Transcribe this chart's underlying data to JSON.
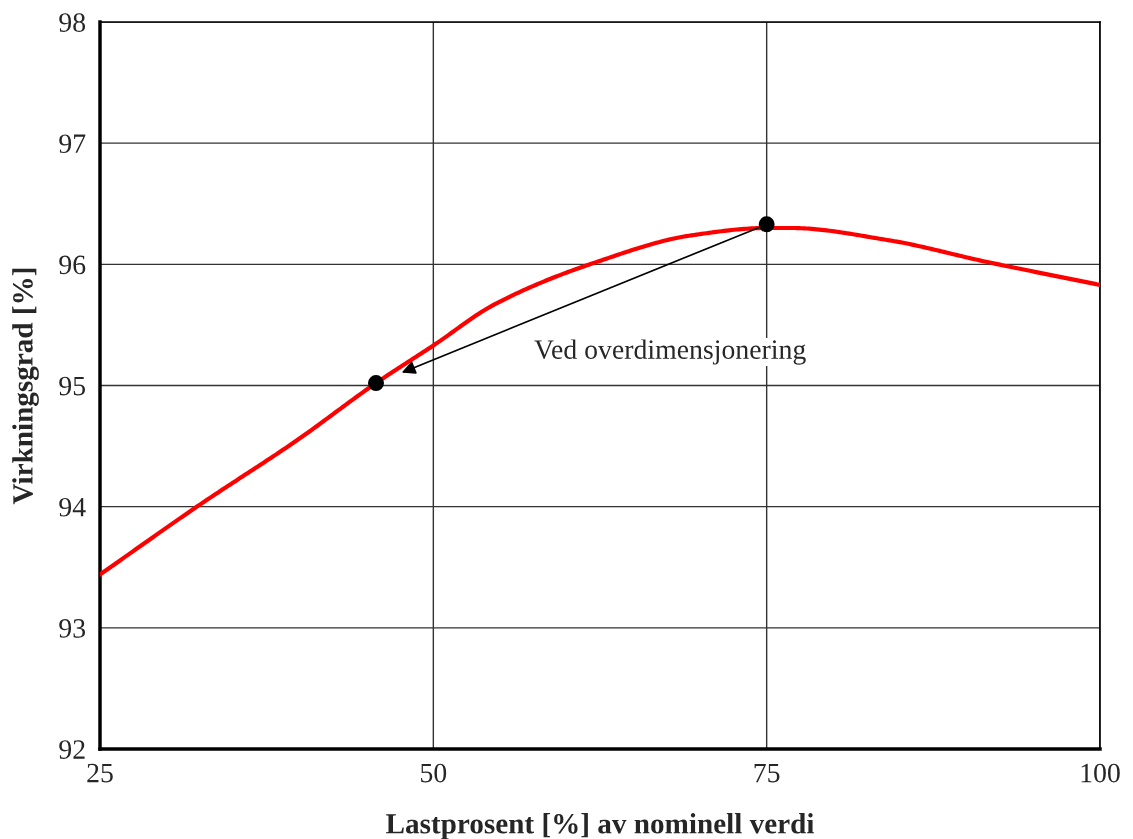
{
  "chart_data": {
    "type": "line",
    "xlabel": "Lastprosent [%] av nominell verdi",
    "ylabel": "Virkningsgrad [%]",
    "xlim": [
      25,
      100
    ],
    "xticks": [
      25,
      50,
      75,
      100
    ],
    "ylim": [
      92,
      98
    ],
    "yticks": [
      92,
      93,
      94,
      95,
      96,
      97,
      98
    ],
    "grid": true,
    "series": [
      {
        "color": "#ff0000",
        "x": [
          25,
          32.4,
          39.8,
          45.7,
          50,
          54.6,
          62.0,
          69.4,
          75,
          76.8,
          84.1,
          91.5,
          100
        ],
        "values": [
          93.44,
          94.01,
          94.55,
          95.02,
          95.33,
          95.67,
          96.01,
          96.24,
          96.3,
          96.3,
          96.2,
          96.02,
          95.83
        ]
      },
      {
        "type": "scatter",
        "color": "#000000",
        "marker": "circle",
        "x": [
          45.7,
          75
        ],
        "values": [
          95.02,
          96.33
        ]
      }
    ],
    "annotations": [
      "Ved overdimensjonering"
    ]
  }
}
